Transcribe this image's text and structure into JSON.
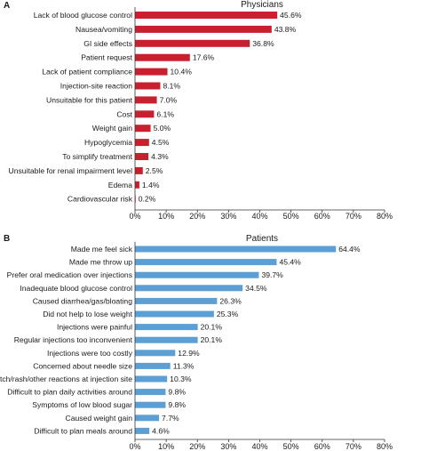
{
  "chart_data": [
    {
      "type": "bar",
      "orientation": "horizontal",
      "panel": "A",
      "title": "Physicians",
      "color": "#c8202f",
      "xlim": [
        0,
        80
      ],
      "xticks": [
        "0%",
        "10%",
        "20%",
        "30%",
        "40%",
        "50%",
        "60%",
        "70%",
        "80%"
      ],
      "categories": [
        "Lack of blood glucose control",
        "Nausea/vomiting",
        "GI side effects",
        "Patient request",
        "Lack of patient compliance",
        "Injection-site reaction",
        "Unsuitable for this patient",
        "Cost",
        "Weight gain",
        "Hypoglycemia",
        "To simplify treatment",
        "Unsuitable for renal impairment level",
        "Edema",
        "Cardiovascular risk"
      ],
      "values": [
        45.6,
        43.8,
        36.8,
        17.6,
        10.4,
        8.1,
        7.0,
        6.1,
        5.0,
        4.5,
        4.3,
        2.5,
        1.4,
        0.2
      ],
      "value_labels": [
        "45.6%",
        "43.8%",
        "36.8%",
        "17.6%",
        "10.4%",
        "8.1%",
        "7.0%",
        "6.1%",
        "5.0%",
        "4.5%",
        "4.3%",
        "2.5%",
        "1.4%",
        "0.2%"
      ]
    },
    {
      "type": "bar",
      "orientation": "horizontal",
      "panel": "B",
      "title": "Patients",
      "color": "#5b9fd4",
      "xlim": [
        0,
        80
      ],
      "xticks": [
        "0%",
        "10%",
        "20%",
        "30%",
        "40%",
        "50%",
        "60%",
        "70%",
        "80%"
      ],
      "categories": [
        "Made me feel sick",
        "Made me throw up",
        "Prefer oral medication over injections",
        "Inadequate blood glucose control",
        "Caused diarrhea/gas/bloating",
        "Did not help to lose weight",
        "Injections were painful",
        "Regular injections too inconvenient",
        "Injections were too costly",
        "Concerned about needle size",
        "Itch/rash/other reactions at injection site",
        "Difficult to plan daily activities around",
        "Symptoms of low blood sugar",
        "Caused weight gain",
        "Difficult to plan meals around"
      ],
      "values": [
        64.4,
        45.4,
        39.7,
        34.5,
        26.3,
        25.3,
        20.1,
        20.1,
        12.9,
        11.3,
        10.3,
        9.8,
        9.8,
        7.7,
        4.6
      ],
      "value_labels": [
        "64.4%",
        "45.4%",
        "39.7%",
        "34.5%",
        "26.3%",
        "25.3%",
        "20.1%",
        "20.1%",
        "12.9%",
        "11.3%",
        "10.3%",
        "9.8%",
        "9.8%",
        "7.7%",
        "4.6%"
      ]
    }
  ]
}
